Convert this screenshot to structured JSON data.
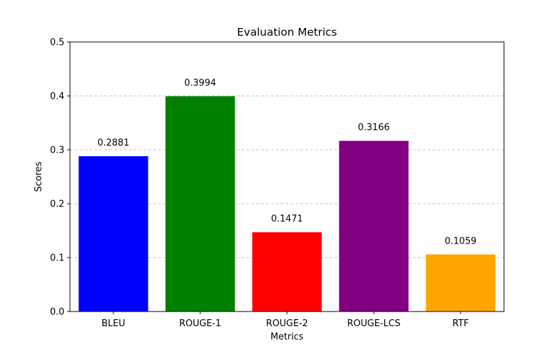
{
  "chart_data": {
    "type": "bar",
    "title": "Evaluation Metrics",
    "xlabel": "Metrics",
    "ylabel": "Scores",
    "categories": [
      "BLEU",
      "ROUGE-1",
      "ROUGE-2",
      "ROUGE-LCS",
      "RTF"
    ],
    "values": [
      0.2881,
      0.3994,
      0.1471,
      0.3166,
      0.1059
    ],
    "value_labels": [
      "0.2881",
      "0.3994",
      "0.1471",
      "0.3166",
      "0.1059"
    ],
    "colors": [
      "#0000ff",
      "#008000",
      "#ff0000",
      "#800080",
      "#ffa500"
    ],
    "ylim": [
      0,
      0.5
    ],
    "yticks": [
      0.0,
      0.1,
      0.2,
      0.3,
      0.4,
      0.5
    ],
    "ytick_labels": [
      "0.0",
      "0.1",
      "0.2",
      "0.3",
      "0.4",
      "0.5"
    ],
    "grid": "y-dashed",
    "legend": "none"
  }
}
